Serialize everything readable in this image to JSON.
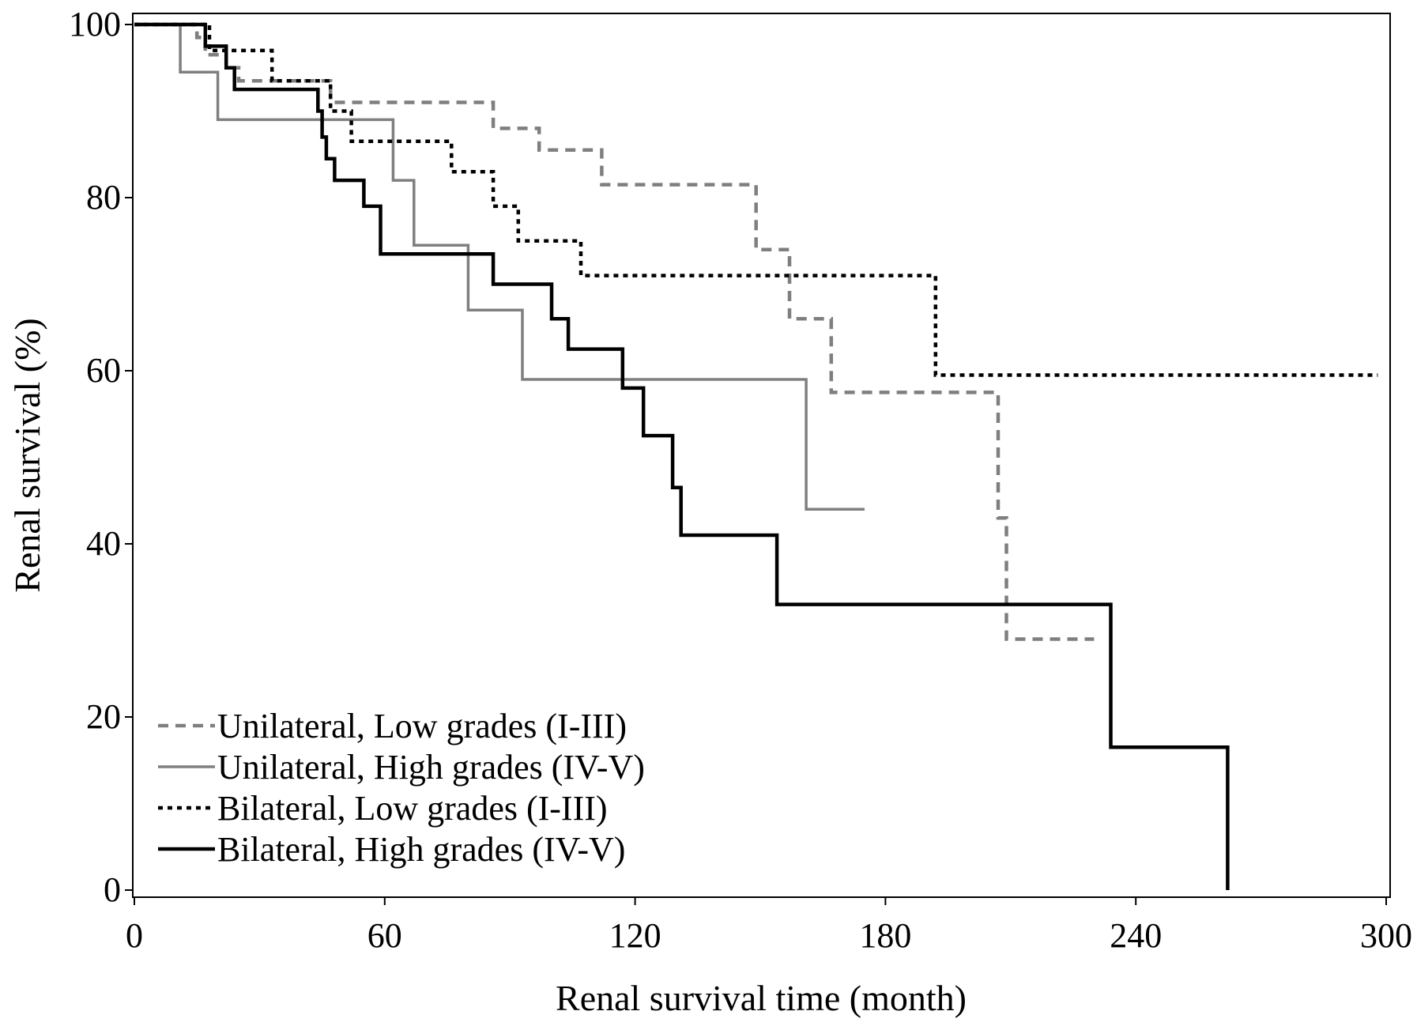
{
  "chart_data": {
    "type": "line",
    "subtype": "kaplan-meier step",
    "xlabel": "Renal survival time (month)",
    "ylabel": "Renal survival (%)",
    "xlim": [
      0,
      300
    ],
    "ylim": [
      0,
      100
    ],
    "xticks": [
      0,
      60,
      120,
      180,
      240,
      300
    ],
    "yticks": [
      0,
      20,
      40,
      60,
      80,
      100
    ],
    "grid": false,
    "legend_position": "bottom-left",
    "series": [
      {
        "name": "Unilateral, Low grades (I-III)",
        "color": "#7f7f7f",
        "dash": "dashed",
        "weight": "bold",
        "points": [
          [
            0,
            100
          ],
          [
            15,
            100
          ],
          [
            15,
            98.5
          ],
          [
            17,
            98.5
          ],
          [
            17,
            96.5
          ],
          [
            22,
            96.5
          ],
          [
            22,
            95
          ],
          [
            25,
            95
          ],
          [
            25,
            93.5
          ],
          [
            47,
            93.5
          ],
          [
            47,
            91
          ],
          [
            86,
            91
          ],
          [
            86,
            88
          ],
          [
            97,
            88
          ],
          [
            97,
            85.5
          ],
          [
            112,
            85.5
          ],
          [
            112,
            81.5
          ],
          [
            149,
            81.5
          ],
          [
            149,
            74
          ],
          [
            157,
            74
          ],
          [
            157,
            66
          ],
          [
            167,
            66
          ],
          [
            167,
            57.5
          ],
          [
            207,
            57.5
          ],
          [
            207,
            43
          ],
          [
            209,
            43
          ],
          [
            209,
            29
          ],
          [
            230,
            29
          ]
        ]
      },
      {
        "name": "Unilateral, High grades (IV-V)",
        "color": "#7f7f7f",
        "dash": "solid",
        "weight": "normal",
        "points": [
          [
            0,
            100
          ],
          [
            11,
            100
          ],
          [
            11,
            94.5
          ],
          [
            20,
            94.5
          ],
          [
            20,
            89
          ],
          [
            62,
            89
          ],
          [
            62,
            82
          ],
          [
            67,
            82
          ],
          [
            67,
            74.5
          ],
          [
            80,
            74.5
          ],
          [
            80,
            67
          ],
          [
            93,
            67
          ],
          [
            93,
            59
          ],
          [
            161,
            59
          ],
          [
            161,
            44
          ],
          [
            175,
            44
          ]
        ]
      },
      {
        "name": "Bilateral, Low grades (I-III)",
        "color": "#000000",
        "dash": "dotted",
        "weight": "bold",
        "points": [
          [
            0,
            100
          ],
          [
            18,
            100
          ],
          [
            18,
            97
          ],
          [
            33,
            97
          ],
          [
            33,
            93.5
          ],
          [
            47,
            93.5
          ],
          [
            47,
            90
          ],
          [
            52,
            90
          ],
          [
            52,
            86.5
          ],
          [
            76,
            86.5
          ],
          [
            76,
            83
          ],
          [
            86,
            83
          ],
          [
            86,
            79
          ],
          [
            92,
            79
          ],
          [
            92,
            75
          ],
          [
            107,
            75
          ],
          [
            107,
            71
          ],
          [
            192,
            71
          ],
          [
            192,
            59.5
          ],
          [
            298,
            59.5
          ]
        ]
      },
      {
        "name": "Bilateral, High grades (IV-V)",
        "color": "#000000",
        "dash": "solid",
        "weight": "bold",
        "points": [
          [
            0,
            100
          ],
          [
            17,
            100
          ],
          [
            17,
            97.5
          ],
          [
            22,
            97.5
          ],
          [
            22,
            95
          ],
          [
            24,
            95
          ],
          [
            24,
            92.5
          ],
          [
            44,
            92.5
          ],
          [
            44,
            90
          ],
          [
            45,
            90
          ],
          [
            45,
            87
          ],
          [
            46,
            87
          ],
          [
            46,
            84.5
          ],
          [
            48,
            84.5
          ],
          [
            48,
            82
          ],
          [
            55,
            82
          ],
          [
            55,
            79
          ],
          [
            59,
            79
          ],
          [
            59,
            73.5
          ],
          [
            86,
            73.5
          ],
          [
            86,
            70
          ],
          [
            100,
            70
          ],
          [
            100,
            66
          ],
          [
            104,
            66
          ],
          [
            104,
            62.5
          ],
          [
            117,
            62.5
          ],
          [
            117,
            58
          ],
          [
            122,
            58
          ],
          [
            122,
            52.5
          ],
          [
            129,
            52.5
          ],
          [
            129,
            46.5
          ],
          [
            131,
            46.5
          ],
          [
            131,
            41
          ],
          [
            154,
            41
          ],
          [
            154,
            33
          ],
          [
            234,
            33
          ],
          [
            234,
            16.5
          ],
          [
            262,
            16.5
          ],
          [
            262,
            0
          ]
        ]
      }
    ]
  }
}
